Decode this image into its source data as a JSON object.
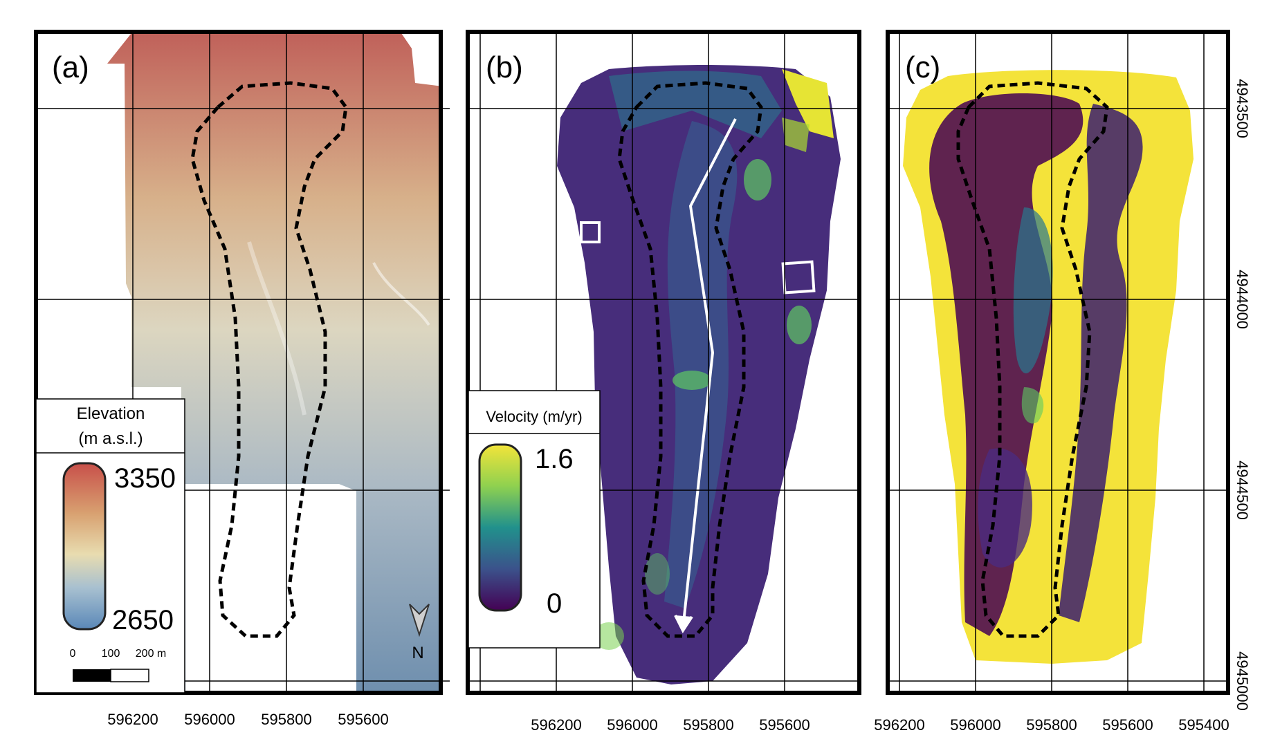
{
  "panels": [
    {
      "label": "(a)"
    },
    {
      "label": "(b)"
    },
    {
      "label": "(c)"
    }
  ],
  "x_ticks_a": [
    "596200",
    "596000",
    "595800",
    "595600"
  ],
  "x_ticks_bc": [
    "596200",
    "596000",
    "595800",
    "595600"
  ],
  "x_tick_c_extra": "595400",
  "y_ticks": [
    "4943500",
    "4944000",
    "4944500",
    "4945000"
  ],
  "elevation_legend": {
    "title_line1": "Elevation",
    "title_line2": "(m a.s.l.)",
    "max": "3350",
    "min": "2650",
    "colors": [
      "#c8504a",
      "#d8a070",
      "#e8dcb0",
      "#a8c0d0",
      "#5a88b8"
    ]
  },
  "scale_bar": {
    "tick0": "0",
    "tick1": "100",
    "tick2": "200 m"
  },
  "north_label": "N",
  "velocity_legend": {
    "title": "Velocity (m/yr)",
    "max": "1.6",
    "min": "0",
    "colors": [
      "#f3e43a",
      "#8fd14f",
      "#21918c",
      "#3b528b",
      "#440154"
    ]
  }
}
